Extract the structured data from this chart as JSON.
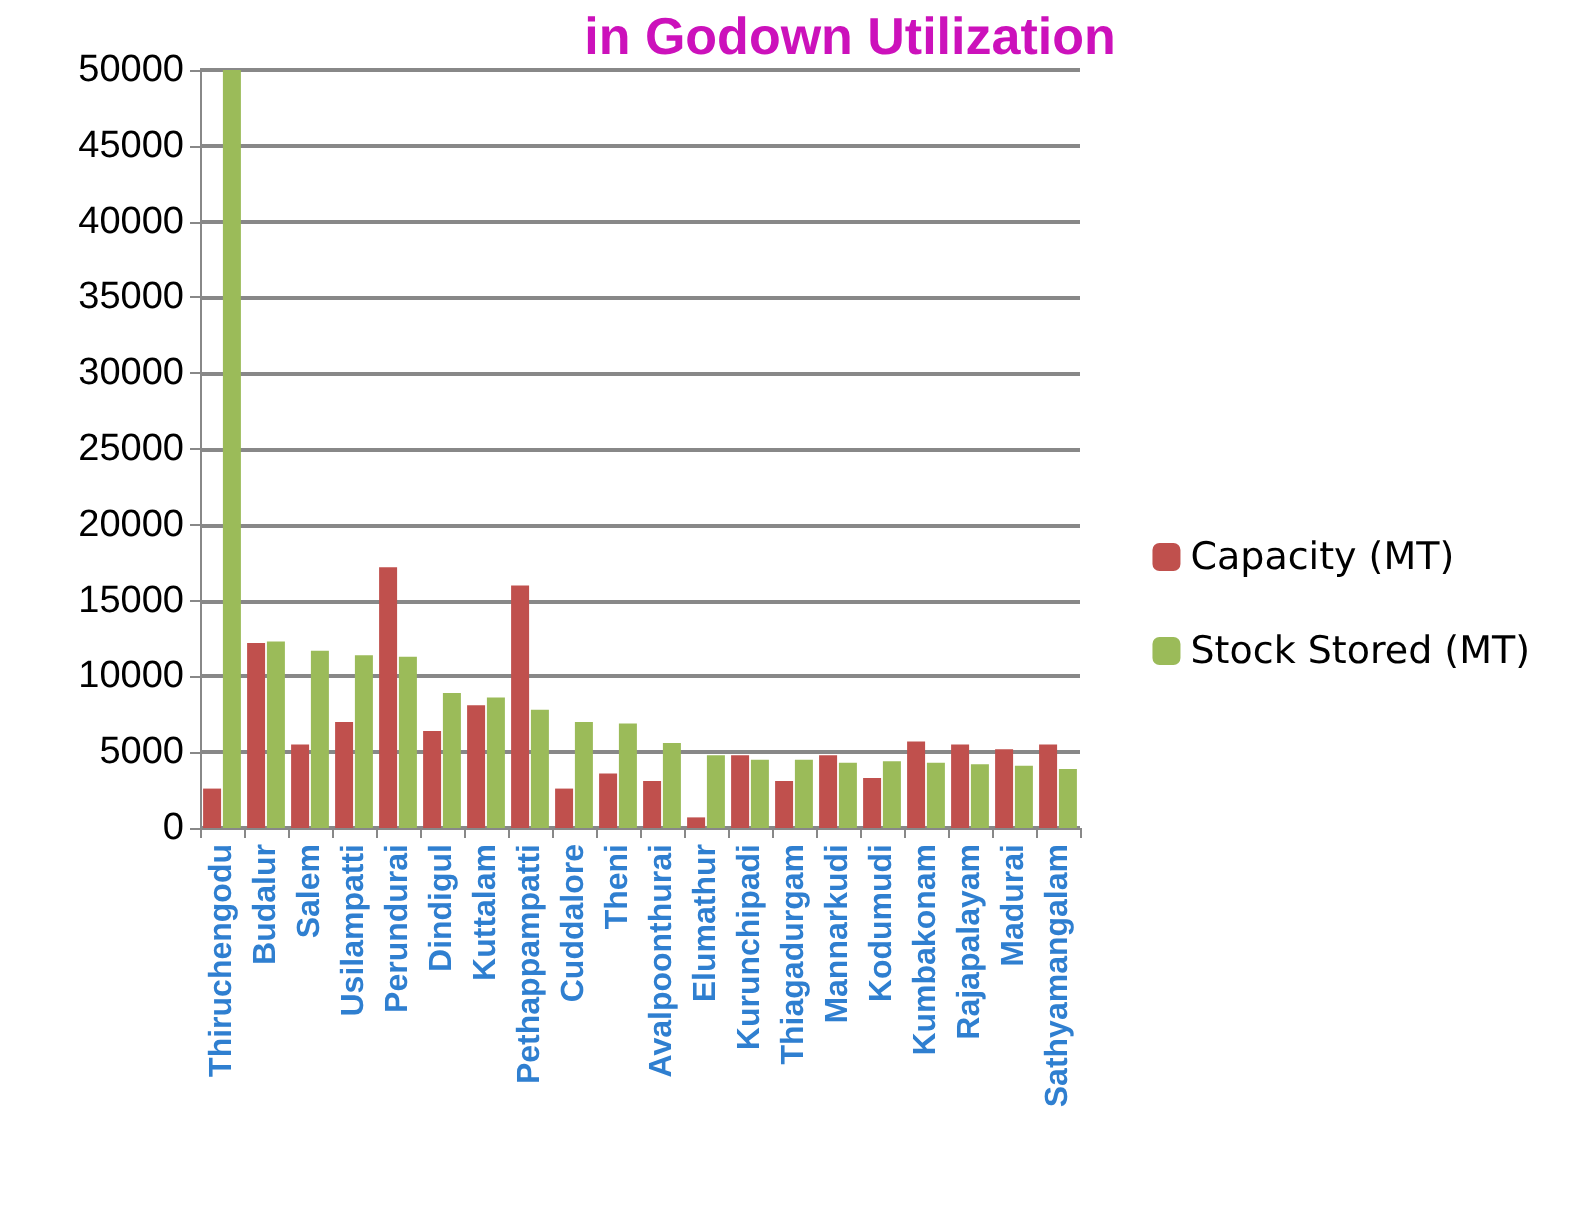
{
  "chart_data": {
    "type": "bar",
    "title": "in Godown Utilization",
    "categories": [
      "Thiruchengodu",
      "Budalur",
      "Salem",
      "Usilampatti",
      "Perundurai",
      "Dindigul",
      "Kuttalam",
      "Pethappampatti",
      "Cuddalore",
      "Theni",
      "Avalpoonthurai",
      "Elumathur",
      "Kurunchipadi",
      "Thiagadurgam",
      "Mannarkudi",
      "Kodumudi",
      "Kumbakonam",
      "Rajapalayam",
      "Madurai",
      "Sathyamangalam"
    ],
    "series": [
      {
        "name": "Capacity (MT)",
        "color": "#c0504d",
        "values": [
          2600,
          12200,
          5500,
          7000,
          17200,
          6400,
          8100,
          16000,
          2600,
          3600,
          3100,
          700,
          4800,
          3100,
          4800,
          3300,
          5700,
          5500,
          5200,
          5500
        ]
      },
      {
        "name": "Stock Stored (MT)",
        "color": "#9bbb59",
        "values": [
          50000,
          12300,
          11700,
          11400,
          11300,
          8900,
          8600,
          7800,
          7000,
          6900,
          5600,
          4800,
          4500,
          4500,
          4300,
          4400,
          4300,
          4200,
          4100,
          3900
        ]
      }
    ],
    "ylim": [
      0,
      50000
    ],
    "yticks": [
      0,
      5000,
      10000,
      15000,
      20000,
      25000,
      30000,
      35000,
      40000,
      45000,
      50000
    ],
    "grid": "y",
    "legend": "right"
  }
}
